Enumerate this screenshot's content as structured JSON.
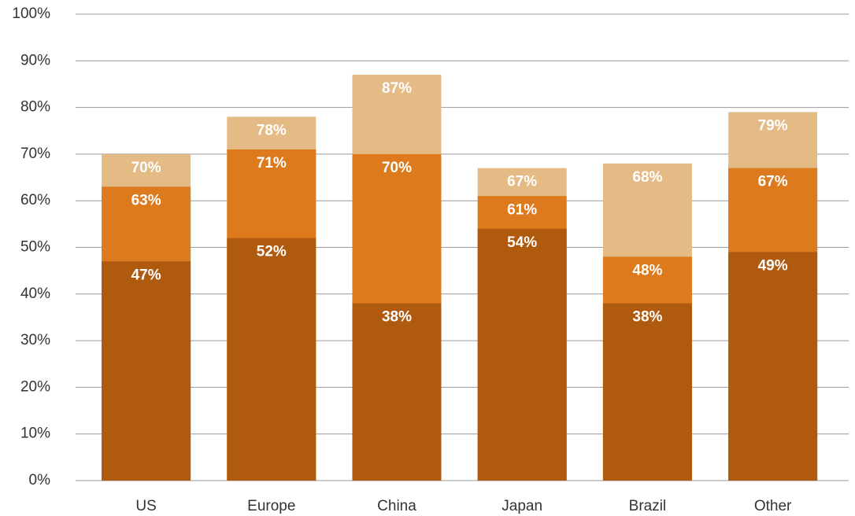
{
  "chart_data": {
    "type": "overlap_bar",
    "categories": [
      "US",
      "Europe",
      "China",
      "Japan",
      "Brazil",
      "Other"
    ],
    "series": [
      {
        "color": "#e5bb85",
        "values": [
          70,
          78,
          87,
          67,
          68,
          79
        ],
        "value_labels": [
          "70%",
          "78%",
          "87%",
          "67%",
          "68%",
          "79%"
        ]
      },
      {
        "color": "#de7a1e",
        "values": [
          63,
          71,
          70,
          61,
          48,
          67
        ],
        "value_labels": [
          "63%",
          "71%",
          "70%",
          "61%",
          "48%",
          "67%"
        ]
      },
      {
        "color": "#b05a10",
        "values": [
          47,
          52,
          38,
          54,
          38,
          49
        ],
        "value_labels": [
          "47%",
          "52%",
          "38%",
          "54%",
          "38%",
          "49%"
        ]
      }
    ],
    "ylim": [
      0,
      100
    ],
    "yticks": [
      {
        "value": 0,
        "label": "0%"
      },
      {
        "value": 10,
        "label": "10%"
      },
      {
        "value": 20,
        "label": "20%"
      },
      {
        "value": 30,
        "label": "30%"
      },
      {
        "value": 40,
        "label": "40%"
      },
      {
        "value": 50,
        "label": "50%"
      },
      {
        "value": 60,
        "label": "60%"
      },
      {
        "value": 70,
        "label": "70%"
      },
      {
        "value": 80,
        "label": "80%"
      },
      {
        "value": 90,
        "label": "90%"
      },
      {
        "value": 100,
        "label": "100%"
      }
    ],
    "grid": true
  }
}
